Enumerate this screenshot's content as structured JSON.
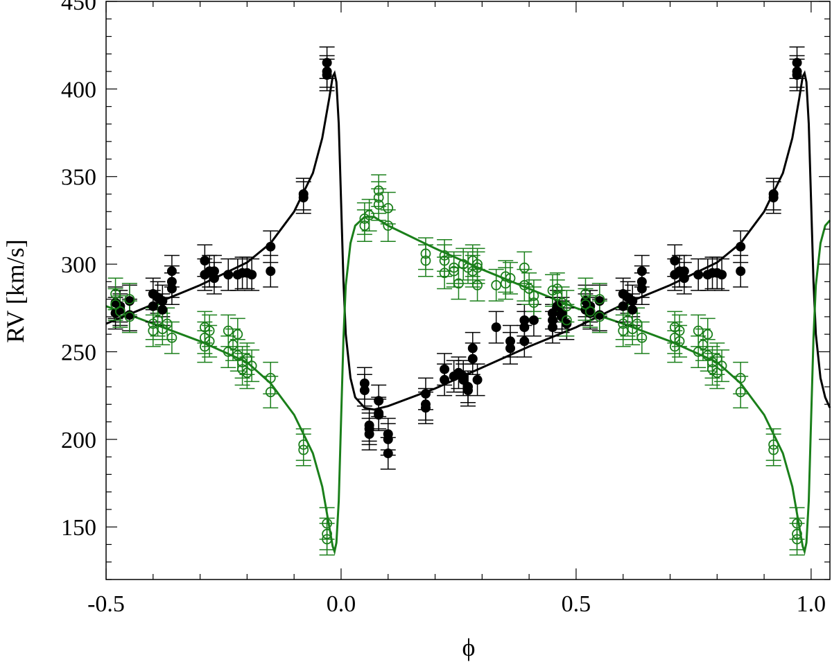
{
  "chart_data": {
    "type": "scatter",
    "xlabel": "ϕ",
    "ylabel": "RV [km/s]",
    "xlim": [
      -0.5,
      1.04
    ],
    "ylim": [
      120,
      450
    ],
    "xticks": [
      -0.5,
      0.0,
      0.5,
      1.0
    ],
    "xtick_labels": [
      "-0.5",
      "0.0",
      "0.5",
      "1.0"
    ],
    "yticks": [
      150,
      200,
      250,
      300,
      350,
      400,
      450
    ],
    "ytick_labels": [
      "150",
      "200",
      "250",
      "300",
      "350",
      "400",
      "450"
    ],
    "minor_tick_step_x": 0.1,
    "minor_tick_step_y": 10,
    "grid": false,
    "legend": false,
    "repeat_period": 1.0,
    "errorbar": 9,
    "colors": {
      "primary": "#000000",
      "secondary": "#1a7f1a"
    },
    "series": [
      {
        "marker": "filled-circle",
        "color": "#000000",
        "points": [
          [
            -0.48,
            278
          ],
          [
            -0.48,
            272
          ],
          [
            -0.47,
            276
          ],
          [
            -0.47,
            274
          ],
          [
            -0.45,
            279
          ],
          [
            -0.45,
            271
          ],
          [
            -0.4,
            283
          ],
          [
            -0.4,
            276
          ],
          [
            -0.39,
            281
          ],
          [
            -0.38,
            279
          ],
          [
            -0.38,
            274
          ],
          [
            -0.36,
            296
          ],
          [
            -0.36,
            290
          ],
          [
            -0.36,
            286
          ],
          [
            -0.29,
            302
          ],
          [
            -0.29,
            294
          ],
          [
            -0.28,
            296
          ],
          [
            -0.27,
            296
          ],
          [
            -0.27,
            292
          ],
          [
            -0.24,
            294
          ],
          [
            -0.22,
            294
          ],
          [
            -0.21,
            295
          ],
          [
            -0.2,
            295
          ],
          [
            -0.19,
            294
          ],
          [
            -0.15,
            310
          ],
          [
            -0.15,
            296
          ],
          [
            -0.08,
            340
          ],
          [
            -0.08,
            338
          ],
          [
            -0.03,
            415
          ],
          [
            -0.03,
            410
          ],
          [
            -0.03,
            408
          ],
          [
            0.05,
            232
          ],
          [
            0.05,
            228
          ],
          [
            0.06,
            208
          ],
          [
            0.06,
            206
          ],
          [
            0.06,
            203
          ],
          [
            0.08,
            222
          ],
          [
            0.08,
            215
          ],
          [
            0.08,
            214
          ],
          [
            0.1,
            203
          ],
          [
            0.1,
            200
          ],
          [
            0.1,
            192
          ],
          [
            0.18,
            226
          ],
          [
            0.18,
            220
          ],
          [
            0.18,
            218
          ],
          [
            0.22,
            240
          ],
          [
            0.22,
            234
          ],
          [
            0.24,
            236
          ],
          [
            0.25,
            238
          ],
          [
            0.26,
            236
          ],
          [
            0.26,
            234
          ],
          [
            0.27,
            230
          ],
          [
            0.27,
            228
          ],
          [
            0.28,
            246
          ],
          [
            0.28,
            252
          ],
          [
            0.29,
            234
          ],
          [
            0.33,
            264
          ],
          [
            0.36,
            256
          ],
          [
            0.36,
            252
          ],
          [
            0.39,
            268
          ],
          [
            0.39,
            264
          ],
          [
            0.39,
            256
          ],
          [
            0.41,
            268
          ],
          [
            0.45,
            272
          ],
          [
            0.45,
            268
          ],
          [
            0.45,
            264
          ],
          [
            0.46,
            276
          ],
          [
            0.47,
            272
          ],
          [
            0.47,
            270
          ],
          [
            0.48,
            266
          ],
          [
            0.52,
            279
          ],
          [
            0.52,
            274
          ],
          [
            0.53,
            276
          ],
          [
            0.53,
            272
          ],
          [
            0.55,
            279
          ],
          [
            0.55,
            271
          ],
          [
            0.6,
            283
          ],
          [
            0.6,
            276
          ],
          [
            0.61,
            281
          ],
          [
            0.62,
            279
          ],
          [
            0.62,
            274
          ],
          [
            0.64,
            296
          ],
          [
            0.64,
            290
          ],
          [
            0.64,
            286
          ],
          [
            0.71,
            302
          ],
          [
            0.71,
            294
          ],
          [
            0.72,
            296
          ],
          [
            0.73,
            296
          ],
          [
            0.73,
            292
          ],
          [
            0.76,
            294
          ],
          [
            0.78,
            294
          ],
          [
            0.79,
            295
          ],
          [
            0.8,
            295
          ],
          [
            0.81,
            294
          ],
          [
            0.85,
            310
          ],
          [
            0.85,
            296
          ],
          [
            0.92,
            340
          ],
          [
            0.92,
            338
          ],
          [
            0.97,
            415
          ],
          [
            0.97,
            410
          ],
          [
            0.97,
            408
          ]
        ]
      },
      {
        "marker": "open-circle",
        "color": "#1a7f1a",
        "points": [
          [
            -0.48,
            283
          ],
          [
            -0.48,
            277
          ],
          [
            -0.47,
            273
          ],
          [
            -0.45,
            280
          ],
          [
            -0.45,
            270
          ],
          [
            -0.4,
            266
          ],
          [
            -0.4,
            262
          ],
          [
            -0.39,
            268
          ],
          [
            -0.38,
            263
          ],
          [
            -0.37,
            266
          ],
          [
            -0.36,
            258
          ],
          [
            -0.29,
            264
          ],
          [
            -0.29,
            258
          ],
          [
            -0.29,
            253
          ],
          [
            -0.28,
            262
          ],
          [
            -0.28,
            256
          ],
          [
            -0.24,
            262
          ],
          [
            -0.24,
            250
          ],
          [
            -0.23,
            254
          ],
          [
            -0.22,
            248
          ],
          [
            -0.22,
            260
          ],
          [
            -0.21,
            244
          ],
          [
            -0.21,
            240
          ],
          [
            -0.2,
            246
          ],
          [
            -0.2,
            238
          ],
          [
            -0.19,
            242
          ],
          [
            -0.15,
            235
          ],
          [
            -0.15,
            227
          ],
          [
            -0.08,
            197
          ],
          [
            -0.08,
            194
          ],
          [
            -0.03,
            152
          ],
          [
            -0.03,
            146
          ],
          [
            -0.03,
            143
          ],
          [
            0.05,
            326
          ],
          [
            0.05,
            322
          ],
          [
            0.06,
            328
          ],
          [
            0.08,
            342
          ],
          [
            0.08,
            338
          ],
          [
            0.08,
            334
          ],
          [
            0.1,
            332
          ],
          [
            0.1,
            322
          ],
          [
            0.18,
            306
          ],
          [
            0.18,
            302
          ],
          [
            0.22,
            305
          ],
          [
            0.22,
            302
          ],
          [
            0.22,
            295
          ],
          [
            0.24,
            298
          ],
          [
            0.24,
            296
          ],
          [
            0.25,
            289
          ],
          [
            0.26,
            300
          ],
          [
            0.27,
            298
          ],
          [
            0.28,
            302
          ],
          [
            0.28,
            296
          ],
          [
            0.29,
            300
          ],
          [
            0.29,
            288
          ],
          [
            0.29,
            298
          ],
          [
            0.33,
            288
          ],
          [
            0.35,
            293
          ],
          [
            0.35,
            289
          ],
          [
            0.36,
            292
          ],
          [
            0.39,
            298
          ],
          [
            0.39,
            288
          ],
          [
            0.4,
            286
          ],
          [
            0.41,
            282
          ],
          [
            0.41,
            278
          ],
          [
            0.45,
            285
          ],
          [
            0.46,
            286
          ],
          [
            0.46,
            282
          ],
          [
            0.47,
            278
          ],
          [
            0.48,
            276
          ],
          [
            0.48,
            268
          ],
          [
            0.52,
            283
          ],
          [
            0.52,
            277
          ],
          [
            0.53,
            273
          ],
          [
            0.55,
            280
          ],
          [
            0.55,
            270
          ],
          [
            0.6,
            266
          ],
          [
            0.6,
            262
          ],
          [
            0.61,
            268
          ],
          [
            0.62,
            263
          ],
          [
            0.63,
            266
          ],
          [
            0.64,
            258
          ],
          [
            0.71,
            264
          ],
          [
            0.71,
            258
          ],
          [
            0.71,
            253
          ],
          [
            0.72,
            262
          ],
          [
            0.72,
            256
          ],
          [
            0.76,
            262
          ],
          [
            0.76,
            250
          ],
          [
            0.77,
            254
          ],
          [
            0.78,
            248
          ],
          [
            0.78,
            260
          ],
          [
            0.79,
            244
          ],
          [
            0.79,
            240
          ],
          [
            0.8,
            246
          ],
          [
            0.8,
            238
          ],
          [
            0.81,
            242
          ],
          [
            0.85,
            235
          ],
          [
            0.85,
            227
          ],
          [
            0.92,
            197
          ],
          [
            0.92,
            194
          ],
          [
            0.97,
            152
          ],
          [
            0.97,
            146
          ],
          [
            0.97,
            143
          ]
        ]
      }
    ],
    "curves": [
      {
        "color": "#000000",
        "points": [
          [
            -0.5,
            266
          ],
          [
            -0.4,
            277
          ],
          [
            -0.3,
            288
          ],
          [
            -0.2,
            301
          ],
          [
            -0.15,
            312
          ],
          [
            -0.1,
            330
          ],
          [
            -0.06,
            352
          ],
          [
            -0.04,
            372
          ],
          [
            -0.025,
            395
          ],
          [
            -0.018,
            407
          ],
          [
            -0.014,
            409
          ],
          [
            -0.01,
            404
          ],
          [
            -0.005,
            380
          ],
          [
            0.0,
            335
          ],
          [
            0.005,
            290
          ],
          [
            0.01,
            260
          ],
          [
            0.02,
            235
          ],
          [
            0.03,
            224
          ],
          [
            0.05,
            218
          ],
          [
            0.07,
            217
          ],
          [
            0.1,
            219
          ],
          [
            0.2,
            229
          ],
          [
            0.3,
            241
          ],
          [
            0.4,
            253
          ],
          [
            0.5,
            264
          ],
          [
            0.6,
            277
          ],
          [
            0.7,
            288
          ],
          [
            0.8,
            301
          ],
          [
            0.85,
            312
          ],
          [
            0.9,
            330
          ],
          [
            0.94,
            352
          ],
          [
            0.96,
            372
          ],
          [
            0.975,
            395
          ],
          [
            0.982,
            407
          ],
          [
            0.986,
            409
          ],
          [
            0.99,
            404
          ],
          [
            0.995,
            380
          ],
          [
            1.0,
            335
          ],
          [
            1.005,
            290
          ],
          [
            1.01,
            260
          ],
          [
            1.02,
            235
          ],
          [
            1.03,
            224
          ],
          [
            1.04,
            218
          ]
        ]
      },
      {
        "color": "#1a7f1a",
        "points": [
          [
            -0.5,
            276
          ],
          [
            -0.4,
            266
          ],
          [
            -0.3,
            256
          ],
          [
            -0.2,
            244
          ],
          [
            -0.15,
            232
          ],
          [
            -0.1,
            214
          ],
          [
            -0.06,
            192
          ],
          [
            -0.04,
            173
          ],
          [
            -0.025,
            150
          ],
          [
            -0.018,
            139
          ],
          [
            -0.014,
            136
          ],
          [
            -0.01,
            141
          ],
          [
            -0.005,
            165
          ],
          [
            0.0,
            212
          ],
          [
            0.005,
            258
          ],
          [
            0.01,
            288
          ],
          [
            0.02,
            312
          ],
          [
            0.03,
            322
          ],
          [
            0.05,
            327
          ],
          [
            0.07,
            327
          ],
          [
            0.1,
            322
          ],
          [
            0.2,
            309
          ],
          [
            0.3,
            297
          ],
          [
            0.4,
            286
          ],
          [
            0.5,
            275
          ],
          [
            0.6,
            266
          ],
          [
            0.7,
            256
          ],
          [
            0.8,
            244
          ],
          [
            0.85,
            232
          ],
          [
            0.9,
            214
          ],
          [
            0.94,
            192
          ],
          [
            0.96,
            173
          ],
          [
            0.975,
            150
          ],
          [
            0.982,
            139
          ],
          [
            0.986,
            136
          ],
          [
            0.99,
            141
          ],
          [
            0.995,
            165
          ],
          [
            1.0,
            212
          ],
          [
            1.005,
            258
          ],
          [
            1.01,
            288
          ],
          [
            1.02,
            312
          ],
          [
            1.03,
            322
          ],
          [
            1.04,
            325
          ]
        ]
      }
    ]
  }
}
